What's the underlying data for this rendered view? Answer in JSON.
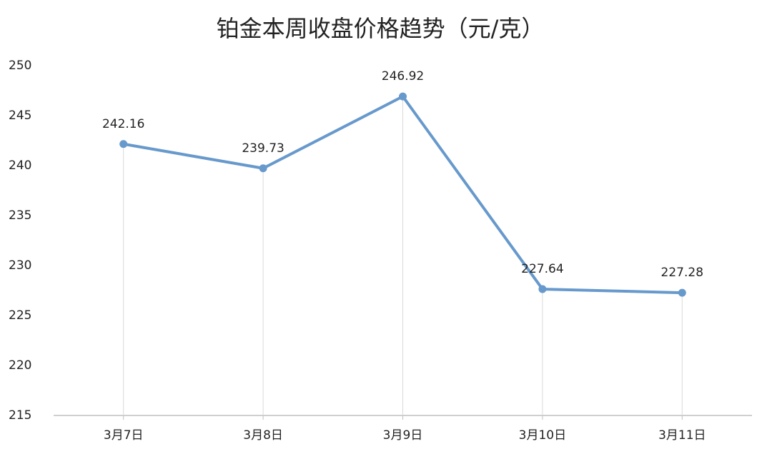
{
  "chart_data": {
    "type": "line",
    "title": "铂金本周收盘价格趋势（元/克）",
    "categories": [
      "3月7日",
      "3月8日",
      "3月9日",
      "3月10日",
      "3月11日"
    ],
    "values": [
      242.16,
      239.73,
      246.92,
      227.64,
      227.28
    ],
    "color": "#6799cc",
    "ylim": [
      215,
      250
    ],
    "yticks": [
      215,
      220,
      225,
      230,
      235,
      240,
      245,
      250
    ],
    "drop_lines": true
  }
}
